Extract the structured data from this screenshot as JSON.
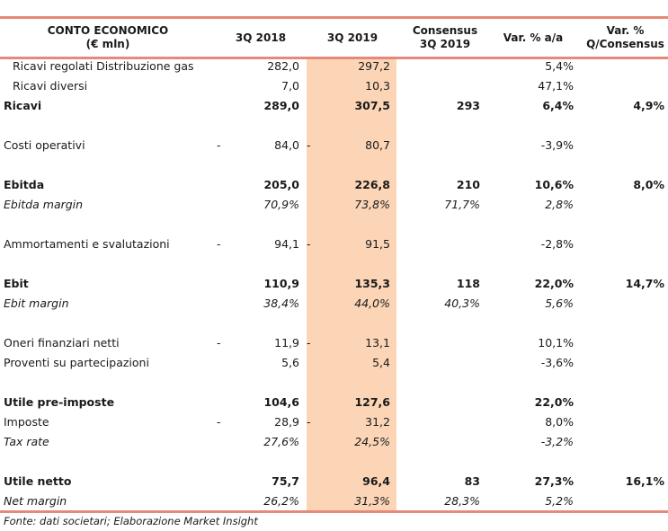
{
  "header": {
    "col0": [
      "CONTO ECONOMICO",
      "(€ mln)"
    ],
    "col1": "3Q 2018",
    "col2": "3Q 2019",
    "col3": [
      "Consensus",
      "3Q 2019"
    ],
    "col4": "Var. % a/a",
    "col5": [
      "Var. %",
      "Q/Consensus"
    ]
  },
  "rows": [
    {
      "label": "Ricavi regolati Distribuzione gas",
      "v18": "282,0",
      "v19": "297,2",
      "cons": "",
      "var": "5,4%",
      "varq": "",
      "style": "indent",
      "dash18": false,
      "dash19": false
    },
    {
      "label": "Ricavi diversi",
      "v18": "7,0",
      "v19": "10,3",
      "cons": "",
      "var": "47,1%",
      "varq": "",
      "style": "indent",
      "dash18": false,
      "dash19": false
    },
    {
      "label": "Ricavi",
      "v18": "289,0",
      "v19": "307,5",
      "cons": "293",
      "var": "6,4%",
      "varq": "4,9%",
      "style": "bold",
      "dash18": false,
      "dash19": false
    },
    {
      "label": "Costi operativi",
      "v18": "84,0",
      "v19": "80,7",
      "cons": "",
      "var": "-3,9%",
      "varq": "",
      "style": "normal",
      "dash18": true,
      "dash19": true
    },
    {
      "label": "Ebitda",
      "v18": "205,0",
      "v19": "226,8",
      "cons": "210",
      "var": "10,6%",
      "varq": "8,0%",
      "style": "bold",
      "dash18": false,
      "dash19": false
    },
    {
      "label": "Ebitda margin",
      "v18": "70,9%",
      "v19": "73,8%",
      "cons": "71,7%",
      "var": "2,8%",
      "varq": "",
      "style": "italic",
      "dash18": false,
      "dash19": false
    },
    {
      "label": "Ammortamenti e svalutazioni",
      "v18": "94,1",
      "v19": "91,5",
      "cons": "",
      "var": "-2,8%",
      "varq": "",
      "style": "normal",
      "dash18": true,
      "dash19": true
    },
    {
      "label": "Ebit",
      "v18": "110,9",
      "v19": "135,3",
      "cons": "118",
      "var": "22,0%",
      "varq": "14,7%",
      "style": "bold",
      "dash18": false,
      "dash19": false
    },
    {
      "label": "Ebit margin",
      "v18": "38,4%",
      "v19": "44,0%",
      "cons": "40,3%",
      "var": "5,6%",
      "varq": "",
      "style": "italic",
      "dash18": false,
      "dash19": false
    },
    {
      "label": "Oneri finanziari netti",
      "v18": "11,9",
      "v19": "13,1",
      "cons": "",
      "var": "10,1%",
      "varq": "",
      "style": "normal",
      "dash18": true,
      "dash19": true
    },
    {
      "label": "Proventi su partecipazioni",
      "v18": "5,6",
      "v19": "5,4",
      "cons": "",
      "var": "-3,6%",
      "varq": "",
      "style": "normal",
      "dash18": false,
      "dash19": false
    },
    {
      "label": "Utile pre-imposte",
      "v18": "104,6",
      "v19": "127,6",
      "cons": "",
      "var": "22,0%",
      "varq": "",
      "style": "bold",
      "dash18": false,
      "dash19": false
    },
    {
      "label": "Imposte",
      "v18": "28,9",
      "v19": "31,2",
      "cons": "",
      "var": "8,0%",
      "varq": "",
      "style": "normal",
      "dash18": true,
      "dash19": true
    },
    {
      "label": "Tax rate",
      "v18": "27,6%",
      "v19": "24,5%",
      "cons": "",
      "var": "-3,2%",
      "varq": "",
      "style": "italic",
      "dash18": false,
      "dash19": false
    },
    {
      "label": "Utile netto",
      "v18": "75,7",
      "v19": "96,4",
      "cons": "83",
      "var": "27,3%",
      "varq": "16,1%",
      "style": "bold",
      "dash18": false,
      "dash19": false
    },
    {
      "label": "Net margin",
      "v18": "26,2%",
      "v19": "31,3%",
      "cons": "28,3%",
      "var": "5,2%",
      "varq": "",
      "style": "italic",
      "dash18": false,
      "dash19": false
    }
  ],
  "dash_symbol": "-",
  "source": "Fonte: dati societari; Elaborazione Market Insight",
  "colors": {
    "rule": "#e5897a",
    "highlight": "#fbd5b6"
  }
}
